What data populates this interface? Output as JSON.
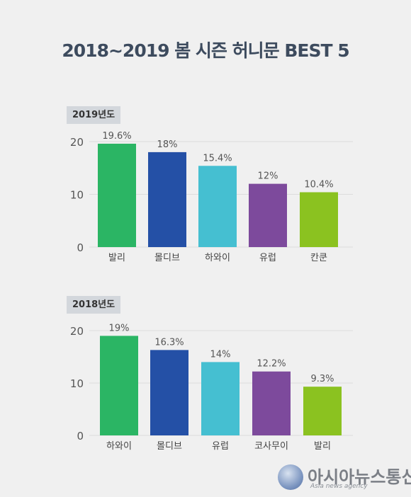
{
  "title": "2018~2019 봄 시즌 허니문 BEST 5",
  "chart_data": [
    {
      "type": "bar",
      "section_label": "2019년도",
      "categories": [
        "발리",
        "몰디브",
        "하와이",
        "유럽",
        "칸쿤"
      ],
      "values": [
        19.6,
        18,
        15.4,
        12,
        10.4
      ],
      "value_labels": [
        "19.6%",
        "18%",
        "15.4%",
        "12%",
        "10.4%"
      ],
      "colors": [
        "#2bb564",
        "#2450a6",
        "#45bfd1",
        "#7d4a9c",
        "#8bc220"
      ],
      "yticks": [
        "0",
        "10",
        "20"
      ],
      "ylim": [
        0,
        20
      ],
      "grid": true
    },
    {
      "type": "bar",
      "section_label": "2018년도",
      "categories": [
        "하와이",
        "몰디브",
        "유럽",
        "코사무이",
        "발리"
      ],
      "values": [
        19,
        16.3,
        14,
        12.2,
        9.3
      ],
      "value_labels": [
        "19%",
        "16.3%",
        "14%",
        "12.2%",
        "9.3%"
      ],
      "colors": [
        "#2bb564",
        "#2450a6",
        "#45bfd1",
        "#7d4a9c",
        "#8bc220"
      ],
      "yticks": [
        "0",
        "10",
        "20"
      ],
      "ylim": [
        0,
        20
      ],
      "grid": true
    }
  ],
  "logo": {
    "name": "아시아뉴스통신",
    "subtitle": "Asia news agency"
  }
}
